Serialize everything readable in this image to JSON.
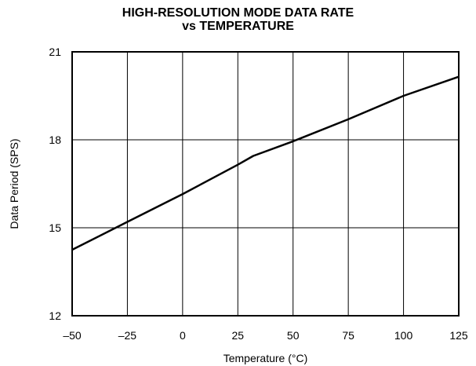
{
  "chart_data": {
    "type": "line",
    "title": "HIGH-RESOLUTION MODE DATA RATE",
    "subtitle": "vs TEMPERATURE",
    "xlabel": "Temperature (°C)",
    "ylabel": "Data Period (SPS)",
    "xlim": [
      -50,
      125
    ],
    "ylim": [
      12,
      21
    ],
    "xticks": [
      -50,
      -25,
      0,
      25,
      50,
      75,
      100,
      125
    ],
    "xtick_labels": [
      "–50",
      "–25",
      "0",
      "25",
      "50",
      "75",
      "100",
      "125"
    ],
    "yticks": [
      12,
      15,
      18,
      21
    ],
    "ytick_labels": [
      "12",
      "15",
      "18",
      "21"
    ],
    "grid": true,
    "series": [
      {
        "x": [
          -50,
          -25,
          0,
          25,
          32,
          50,
          75,
          100,
          125
        ],
        "y": [
          14.25,
          15.2,
          16.15,
          17.15,
          17.45,
          17.95,
          18.7,
          19.5,
          20.15
        ]
      }
    ]
  }
}
